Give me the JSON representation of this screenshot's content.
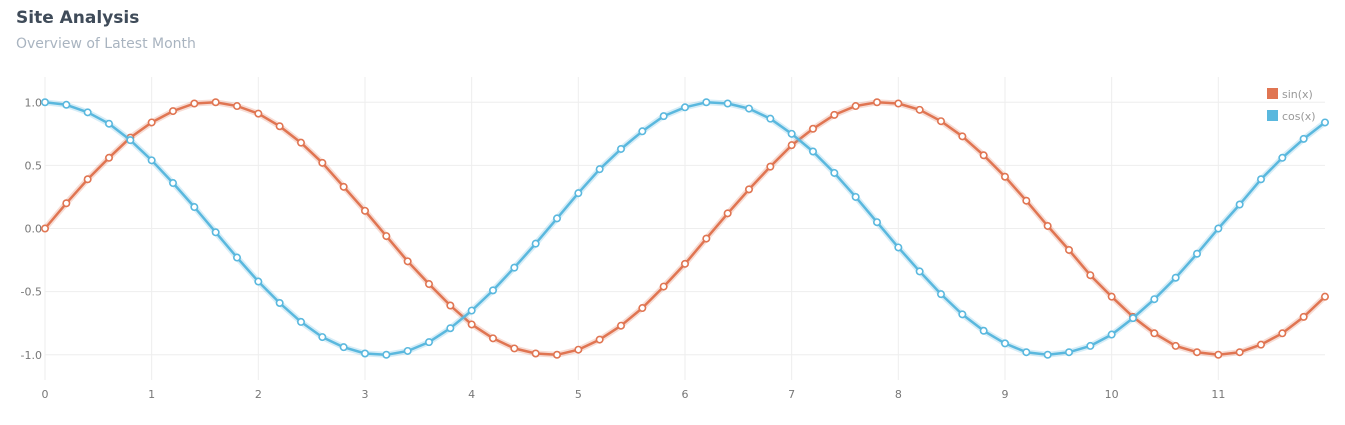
{
  "header": {
    "title": "Site Analysis",
    "subtitle": "Overview of Latest Month"
  },
  "colors": {
    "sin": "#e07552",
    "cos": "#5ab8de",
    "grid": "#eeeeee"
  },
  "chart_data": {
    "type": "line",
    "title": "",
    "xlabel": "",
    "ylabel": "",
    "xlim": [
      0,
      12
    ],
    "ylim": [
      -1.2,
      1.2
    ],
    "x_ticks": [
      "0",
      "1",
      "2",
      "3",
      "4",
      "5",
      "6",
      "7",
      "8",
      "9",
      "10",
      "11"
    ],
    "y_ticks": [
      "1.0",
      "0.5",
      "0.0",
      "-0.5",
      "-1.0"
    ],
    "x_start": 0,
    "x_step": 0.2,
    "grid": true,
    "legend_position": "top-right",
    "series": [
      {
        "name": "sin(x)",
        "color": "#e07552",
        "values": [
          0.0,
          0.2,
          0.39,
          0.56,
          0.72,
          0.84,
          0.93,
          0.99,
          1.0,
          0.97,
          0.91,
          0.81,
          0.68,
          0.52,
          0.33,
          0.14,
          -0.06,
          -0.26,
          -0.44,
          -0.61,
          -0.76,
          -0.87,
          -0.95,
          -0.99,
          -1.0,
          -0.96,
          -0.88,
          -0.77,
          -0.63,
          -0.46,
          -0.28,
          -0.08,
          0.12,
          0.31,
          0.49,
          0.66,
          0.79,
          0.9,
          0.97,
          1.0,
          0.99,
          0.94,
          0.85,
          0.73,
          0.58,
          0.41,
          0.22,
          0.02,
          -0.17,
          -0.37,
          -0.54,
          -0.7,
          -0.83,
          -0.93,
          -0.98,
          -1.0,
          -0.98,
          -0.92,
          -0.83,
          -0.7,
          -0.54
        ]
      },
      {
        "name": "cos(x)",
        "color": "#5ab8de",
        "values": [
          1.0,
          0.98,
          0.92,
          0.83,
          0.7,
          0.54,
          0.36,
          0.17,
          -0.03,
          -0.23,
          -0.42,
          -0.59,
          -0.74,
          -0.86,
          -0.94,
          -0.99,
          -1.0,
          -0.97,
          -0.9,
          -0.79,
          -0.65,
          -0.49,
          -0.31,
          -0.12,
          0.08,
          0.28,
          0.47,
          0.63,
          0.77,
          0.89,
          0.96,
          1.0,
          0.99,
          0.95,
          0.87,
          0.75,
          0.61,
          0.44,
          0.25,
          0.05,
          -0.15,
          -0.34,
          -0.52,
          -0.68,
          -0.81,
          -0.91,
          -0.98,
          -1.0,
          -0.98,
          -0.93,
          -0.84,
          -0.71,
          -0.56,
          -0.39,
          -0.2,
          0.0,
          0.19,
          0.39,
          0.56,
          0.71,
          0.84
        ]
      }
    ]
  }
}
